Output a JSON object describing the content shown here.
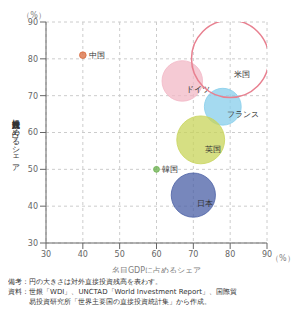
{
  "chart_data": {
    "type": "bubble",
    "xlabel": "名目GDPに占めるシェア",
    "ylabel": "対外直接投資残高に占めるシェア",
    "xunit": "（%）",
    "yunit": "（%）",
    "notes": [
      "備考：円の大きさは対外直接投資残高を表わす。",
      "資料：世銀「WDI」、UNCTAD「World Investment Report」、国際貿",
      "　　　易投資研究所「世界主要国の直接投資統計集」から作成。"
    ],
    "xlim": [
      30,
      90
    ],
    "ylim": [
      30,
      90
    ],
    "xticks": [
      30,
      40,
      50,
      60,
      70,
      80,
      90
    ],
    "yticks": [
      30,
      40,
      50,
      60,
      70,
      80,
      90
    ],
    "grid": true,
    "series": [
      {
        "name": "中国",
        "color": "#d96b3e",
        "marker": "filled",
        "x": [
          40
        ],
        "values": [
          81
        ],
        "radii": [
          0.9
        ]
      },
      {
        "name": "韓国",
        "color": "#6ab04c",
        "marker": "filled",
        "x": [
          60
        ],
        "values": [
          50
        ],
        "radii": [
          0.8
        ]
      },
      {
        "name": "ドイツ",
        "color": "#f2b8c6",
        "marker": "filled",
        "x": [
          67
        ],
        "values": [
          74
        ],
        "radii": [
          5.5
        ]
      },
      {
        "name": "フランス",
        "color": "#87ceeb",
        "marker": "filled",
        "x": [
          78
        ],
        "values": [
          67
        ],
        "radii": [
          5.0
        ]
      },
      {
        "name": "英国",
        "color": "#c8d45a",
        "marker": "filled",
        "x": [
          72
        ],
        "values": [
          58
        ],
        "radii": [
          6.5
        ]
      },
      {
        "name": "日本",
        "color": "#4a5fa5",
        "marker": "filled",
        "x": [
          70
        ],
        "values": [
          43
        ],
        "radii": [
          6.0
        ]
      },
      {
        "name": "米国",
        "color": "#e88090",
        "marker": "ring",
        "x": [
          80
        ],
        "values": [
          80
        ],
        "radii": [
          10.5
        ]
      }
    ]
  }
}
